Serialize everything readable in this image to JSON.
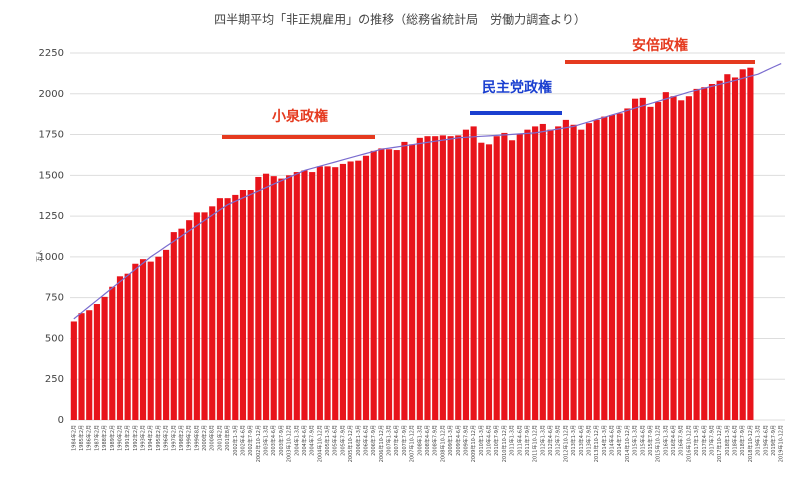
{
  "chart_data": {
    "type": "bar",
    "title": "四半期平均「非正規雇用」の推移（総務省統計局　労働力調査より）",
    "y_label": "万人",
    "categories": [
      "1984年2月",
      "1985年2月",
      "1986年2月",
      "1987年2月",
      "1988年2月",
      "1989年2月",
      "1990年2月",
      "1991年2月",
      "1992年2月",
      "1993年2月",
      "1994年2月",
      "1995年2月",
      "1996年2月",
      "1997年2月",
      "1998年2月",
      "1999年2月",
      "1999年8月",
      "2000年2月",
      "2000年8月",
      "2001年2月",
      "2001年8月",
      "2002年1-3月",
      "2002年4-6月",
      "2002年7-9月",
      "2002年10-12月",
      "2003年1-3月",
      "2003年4-6月",
      "2003年7-9月",
      "2003年10-12月",
      "2004年1-3月",
      "2004年4-6月",
      "2004年7-9月",
      "2004年10-12月",
      "2005年1-3月",
      "2005年4-6月",
      "2005年7-9月",
      "2005年10-12月",
      "2006年1-3月",
      "2006年4-6月",
      "2006年7-9月",
      "2006年10-12月",
      "2007年1-3月",
      "2007年4-6月",
      "2007年7-9月",
      "2007年10-12月",
      "2008年1-3月",
      "2008年4-6月",
      "2008年7-9月",
      "2008年10-12月",
      "2009年1-3月",
      "2009年4-6月",
      "2009年7-9月",
      "2009年10-12月",
      "2010年1-3月",
      "2010年4-6月",
      "2010年7-9月",
      "2010年10-12月",
      "2011年1-3月",
      "2011年4-6月",
      "2011年7-9月",
      "2011年10-12月",
      "2012年1-3月",
      "2012年4-6月",
      "2012年7-9月",
      "2012年10-12月",
      "2013年1-3月",
      "2013年4-6月",
      "2013年7-9月",
      "2013年10-12月",
      "2014年1-3月",
      "2014年4-6月",
      "2014年7-9月",
      "2014年10-12月",
      "2015年1-3月",
      "2015年4-6月",
      "2015年7-9月",
      "2015年10-12月",
      "2016年1-3月",
      "2016年4-6月",
      "2016年7-9月",
      "2016年10-12月",
      "2017年1-3月",
      "2017年4-6月",
      "2017年7-9月",
      "2017年10-12月",
      "2018年1-3月",
      "2018年4-6月",
      "2018年7-9月",
      "2018年10-12月",
      "2019年1-3月",
      "2019年4-6月",
      "2019年7-9月",
      "2019年10-12月"
    ],
    "values": [
      604,
      655,
      673,
      711,
      755,
      817,
      881,
      897,
      958,
      986,
      971,
      1001,
      1043,
      1152,
      1173,
      1225,
      1273,
      1273,
      1310,
      1360,
      1360,
      1380,
      1410,
      1410,
      1490,
      1510,
      1495,
      1480,
      1500,
      1520,
      1530,
      1520,
      1555,
      1555,
      1550,
      1570,
      1585,
      1590,
      1620,
      1650,
      1665,
      1660,
      1655,
      1705,
      1690,
      1730,
      1740,
      1740,
      1745,
      1740,
      1745,
      1780,
      1800,
      1700,
      1690,
      1740,
      1760,
      1715,
      1755,
      1780,
      1800,
      1815,
      1780,
      1800,
      1840,
      1810,
      1780,
      1820,
      1840,
      1860,
      1870,
      1880,
      1910,
      1970,
      1975,
      1920,
      1950,
      2010,
      1985,
      1960,
      1985,
      2030,
      2040,
      2060,
      2080,
      2120,
      2100,
      2150,
      2160,
      null,
      null,
      null,
      null
    ],
    "color": "#e8141b",
    "trend": {
      "color": "#7a6ccf",
      "values": [
        620,
        658,
        696,
        734,
        772,
        810,
        848,
        886,
        924,
        962,
        1000,
        1032,
        1064,
        1096,
        1128,
        1160,
        1192,
        1224,
        1256,
        1288,
        1320,
        1341,
        1362,
        1383,
        1404,
        1425,
        1446,
        1467,
        1488,
        1509,
        1530,
        1543,
        1556,
        1569,
        1582,
        1595,
        1608,
        1621,
        1634,
        1647,
        1660,
        1667,
        1674,
        1681,
        1688,
        1695,
        1702,
        1709,
        1716,
        1723,
        1730,
        1733,
        1736,
        1739,
        1742,
        1745,
        1748,
        1751,
        1754,
        1757,
        1760,
        1768,
        1776,
        1784,
        1792,
        1800,
        1814,
        1828,
        1842,
        1856,
        1870,
        1884,
        1898,
        1912,
        1926,
        1940,
        1954,
        1968,
        1982,
        1996,
        2010,
        2022,
        2034,
        2046,
        2058,
        2070,
        2082,
        2095,
        2108,
        2120,
        2142,
        2164,
        2185
      ]
    },
    "ylim": [
      0,
      2250
    ],
    "yticks": [
      0,
      250,
      500,
      750,
      1000,
      1250,
      1500,
      1750,
      2000,
      2250
    ],
    "grid": true,
    "annotations": [
      {
        "text": "小泉政権",
        "color": "#e53a1f"
      },
      {
        "text": "民主党政権",
        "color": "#1a3fd0"
      },
      {
        "text": "安倍政権",
        "color": "#e53a1f"
      }
    ]
  }
}
